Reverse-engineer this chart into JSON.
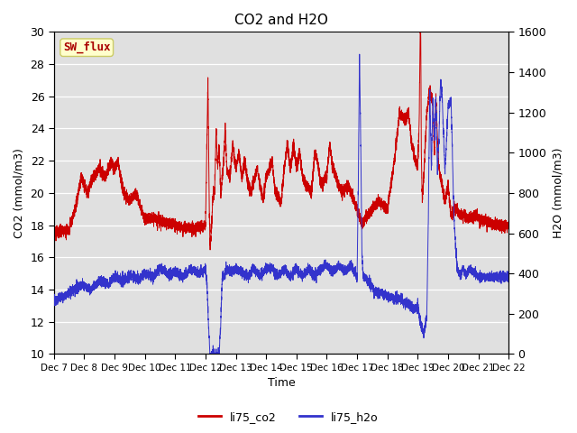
{
  "title": "CO2 and H2O",
  "ylabel_left": "CO2 (mmol/m3)",
  "ylabel_right": "H2O (mmol/m3)",
  "xlabel": "Time",
  "ylim_left": [
    10,
    30
  ],
  "ylim_right": [
    0,
    1600
  ],
  "yticks_left": [
    10,
    12,
    14,
    16,
    18,
    20,
    22,
    24,
    26,
    28,
    30
  ],
  "yticks_right": [
    0,
    200,
    400,
    600,
    800,
    1000,
    1200,
    1400,
    1600
  ],
  "xtick_labels": [
    "Dec 7",
    "Dec 8",
    "Dec 9",
    "Dec 10",
    "Dec 11",
    "Dec 12",
    "Dec 13",
    "Dec 14",
    "Dec 15",
    "Dec 16",
    "Dec 17",
    "Dec 18",
    "Dec 19",
    "Dec 20",
    "Dec 21",
    "Dec 22"
  ],
  "color_co2": "#cc0000",
  "color_h2o": "#3333cc",
  "background_color": "#e0e0e0",
  "legend_label_co2": "li75_co2",
  "legend_label_h2o": "li75_h2o",
  "sw_flux_label": "SW_flux",
  "sw_flux_bg": "#ffffcc",
  "sw_flux_fg": "#aa0000",
  "sw_flux_border": "#cccc66"
}
